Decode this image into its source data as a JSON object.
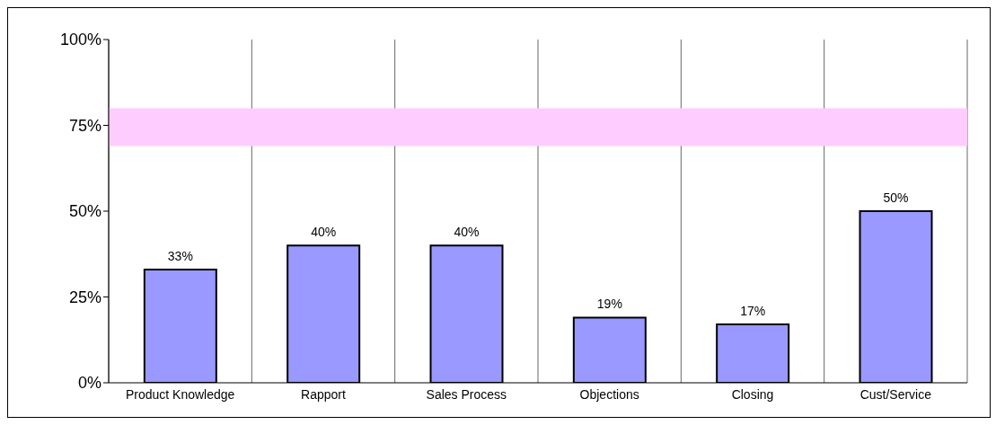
{
  "chart_data": {
    "type": "bar",
    "categories": [
      "Product Knowledge",
      "Rapport",
      "Sales Process",
      "Objections",
      "Closing",
      "Cust/Service"
    ],
    "values": [
      33,
      40,
      40,
      19,
      17,
      50
    ],
    "value_labels": [
      "33%",
      "40%",
      "40%",
      "19%",
      "17%",
      "50%"
    ],
    "color": "#9999ff",
    "ylim": [
      0,
      100
    ],
    "yticks": [
      {
        "value": 0,
        "label": "0%"
      },
      {
        "value": 25,
        "label": "25%"
      },
      {
        "value": 50,
        "label": "50%"
      },
      {
        "value": 75,
        "label": "75%"
      },
      {
        "value": 100,
        "label": "100%"
      }
    ],
    "bands": [
      {
        "axis": "y",
        "from": 69,
        "to": 80,
        "color": "#ffccff"
      }
    ],
    "grid": "x"
  }
}
